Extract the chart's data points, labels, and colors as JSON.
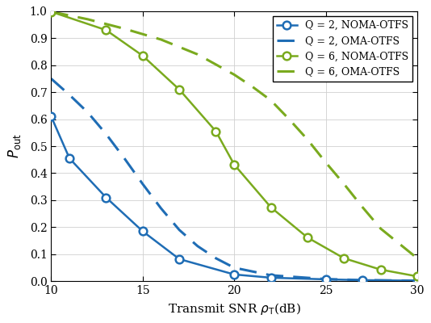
{
  "title": "",
  "xlabel": "Transmit SNR $\\rho_{\\mathrm{T}}$(dB)",
  "ylabel": "$P_{\\mathrm{out}}$",
  "xlim": [
    10,
    30
  ],
  "ylim": [
    0,
    1
  ],
  "xticks": [
    10,
    15,
    20,
    25,
    30
  ],
  "yticks": [
    0.0,
    0.1,
    0.2,
    0.3,
    0.4,
    0.5,
    0.6,
    0.7,
    0.8,
    0.9,
    1.0
  ],
  "series": [
    {
      "label": "Q = 2, NOMA-OTFS",
      "color": "#1f6db5",
      "linestyle": "-",
      "marker": "o",
      "x": [
        10,
        11,
        13,
        15,
        17,
        20,
        22,
        25,
        27,
        30
      ],
      "y": [
        0.61,
        0.455,
        0.31,
        0.185,
        0.082,
        0.025,
        0.013,
        0.007,
        0.004,
        0.002
      ]
    },
    {
      "label": "Q = 2, OMA-OTFS",
      "color": "#1f6db5",
      "linestyle": "--",
      "marker": null,
      "x": [
        10,
        11,
        12,
        13,
        14,
        15,
        16,
        17,
        18,
        19,
        20,
        22,
        25,
        27,
        30
      ],
      "y": [
        0.75,
        0.69,
        0.625,
        0.545,
        0.455,
        0.36,
        0.27,
        0.19,
        0.13,
        0.085,
        0.05,
        0.022,
        0.008,
        0.004,
        0.002
      ]
    },
    {
      "label": "Q = 6, NOMA-OTFS",
      "color": "#7aaa1e",
      "linestyle": "-",
      "marker": "o",
      "x": [
        10,
        13,
        15,
        17,
        19,
        20,
        22,
        24,
        26,
        28,
        30
      ],
      "y": [
        0.998,
        0.93,
        0.835,
        0.71,
        0.555,
        0.432,
        0.274,
        0.162,
        0.085,
        0.043,
        0.018
      ]
    },
    {
      "label": "Q = 6, OMA-OTFS",
      "color": "#7aaa1e",
      "linestyle": "--",
      "marker": null,
      "x": [
        10,
        12,
        14,
        16,
        18,
        20,
        21,
        22,
        23,
        24,
        25,
        26,
        27,
        28,
        30
      ],
      "y": [
        0.998,
        0.97,
        0.935,
        0.895,
        0.84,
        0.765,
        0.72,
        0.67,
        0.6,
        0.525,
        0.44,
        0.36,
        0.275,
        0.195,
        0.085
      ]
    }
  ],
  "legend_loc": "upper right",
  "grid": true,
  "background_color": "#ffffff",
  "figure_width": 5.34,
  "figure_height": 4.0,
  "dpi": 100
}
